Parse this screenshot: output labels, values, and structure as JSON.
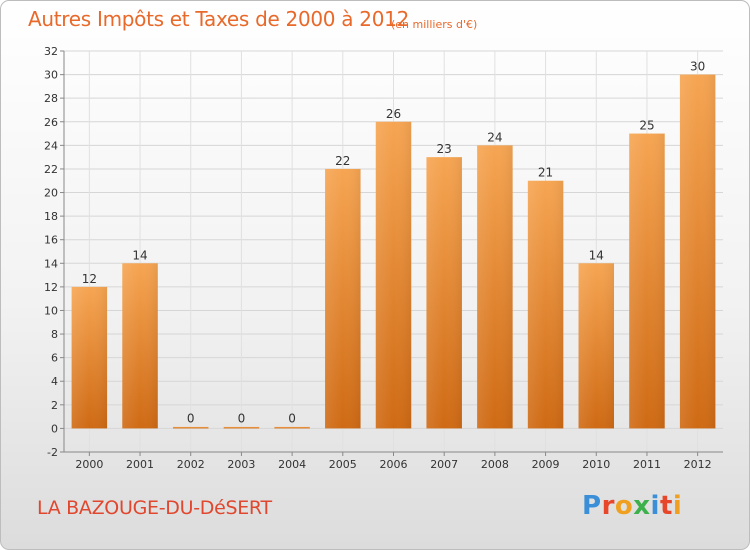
{
  "header": {
    "title": "Autres Impôts et Taxes de 2000 à 2012",
    "unit": "(en milliers d'€)"
  },
  "footer": {
    "commune": "LA BAZOUGE-DU-DéSERT",
    "logo": [
      "P",
      "r",
      "o",
      "x",
      "i",
      "t",
      "i"
    ]
  },
  "chart_data": {
    "type": "bar",
    "categories": [
      "2000",
      "2001",
      "2002",
      "2003",
      "2004",
      "2005",
      "2006",
      "2007",
      "2008",
      "2009",
      "2010",
      "2011",
      "2012"
    ],
    "values": [
      12,
      14,
      0,
      0,
      0,
      22,
      26,
      23,
      24,
      21,
      14,
      25,
      30
    ],
    "title": "Autres Impôts et Taxes de 2000 à 2012",
    "xlabel": "",
    "ylabel": "",
    "ylim": [
      -2,
      32
    ],
    "yticks": [
      -2,
      0,
      2,
      4,
      6,
      8,
      10,
      12,
      14,
      16,
      18,
      20,
      22,
      24,
      26,
      28,
      30,
      32
    ],
    "grid": true,
    "bar_color": "#f08a2c",
    "legend": "none"
  }
}
